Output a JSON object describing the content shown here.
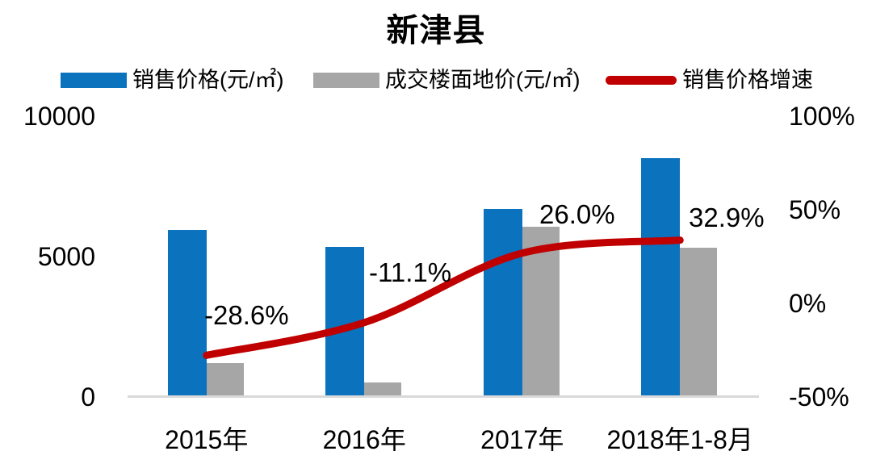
{
  "title": "新津县",
  "colors": {
    "sales_bar": "#0B72BE",
    "land_bar": "#A6A6A6",
    "growth_line": "#C00000",
    "axis_line": "#D9D9D9",
    "text": "#000000",
    "background": "#FFFFFF"
  },
  "chart_data": {
    "type": "bar+line",
    "title": "新津县",
    "categories": [
      "2015年",
      "2016年",
      "2017年",
      "2018年1-8月"
    ],
    "series": [
      {
        "name": "销售价格(元/㎡)",
        "type": "bar",
        "axis": "left",
        "color": "#0B72BE",
        "values": [
          5900,
          5300,
          6650,
          8450
        ]
      },
      {
        "name": "成交楼面地价(元/㎡)",
        "type": "bar",
        "axis": "left",
        "color": "#A6A6A6",
        "values": [
          1150,
          450,
          6000,
          5250
        ]
      },
      {
        "name": "销售价格增速",
        "type": "line",
        "axis": "right",
        "color": "#C00000",
        "values": [
          -28.6,
          -11.1,
          26.0,
          32.9
        ],
        "point_labels": [
          "-28.6%",
          "-11.1%",
          "26.0%",
          "32.9%"
        ]
      }
    ],
    "left_axis": {
      "ticks": [
        0,
        5000,
        10000
      ],
      "range": [
        0,
        10000
      ]
    },
    "right_axis": {
      "ticks": [
        -50,
        0,
        50,
        100
      ],
      "tick_labels": [
        "-50%",
        "0%",
        "50%",
        "100%"
      ],
      "range": [
        -50,
        100
      ],
      "unit": "%"
    },
    "grid": false,
    "legend_position": "top"
  }
}
